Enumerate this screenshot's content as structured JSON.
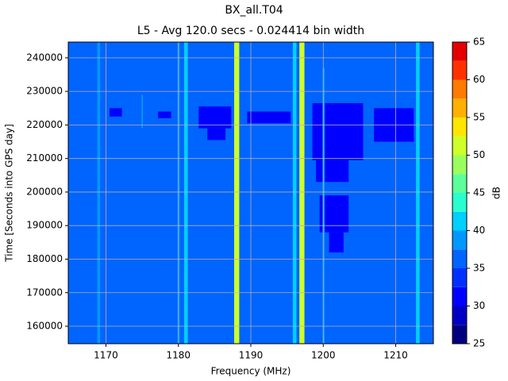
{
  "chart_data": {
    "type": "heatmap",
    "title": "BX_all.T04",
    "subtitle": "L5 - Avg 120.0 secs - 0.024414 bin width",
    "xlabel": "Frequency (MHz)",
    "ylabel": "Time [Seconds into GPS day]",
    "xlim": [
      1164.8,
      1215.2
    ],
    "ylim": [
      154800,
      244700
    ],
    "xticks": [
      1170,
      1180,
      1190,
      1200,
      1210
    ],
    "yticks": [
      160000,
      170000,
      180000,
      190000,
      200000,
      210000,
      220000,
      230000,
      240000
    ],
    "grid": true,
    "colorbar": {
      "label": "dB",
      "levels": [
        25,
        27.5,
        30,
        32.5,
        35,
        37.5,
        40,
        42.5,
        45,
        47.5,
        50,
        52.5,
        55,
        57.5,
        60,
        62.5,
        65
      ],
      "colors": [
        "#00007f",
        "#0000c4",
        "#0000ff",
        "#0030ff",
        "#0064ff",
        "#0098ff",
        "#00d0ff",
        "#29ffce",
        "#5cff9a",
        "#9aff5c",
        "#ceff29",
        "#ffe600",
        "#ffb000",
        "#ff7a00",
        "#ff3000",
        "#e40000"
      ],
      "ticks": [
        25,
        30,
        35,
        40,
        45,
        50,
        55,
        60,
        65
      ]
    },
    "cells": [
      {
        "x": [
          1164.8,
          1215.2
        ],
        "y": [
          154800,
          244700
        ],
        "value": 36
      },
      {
        "x": [
          1170.5,
          1172.2
        ],
        "y": [
          222500,
          225000
        ],
        "value": 31
      },
      {
        "x": [
          1177.2,
          1179.0
        ],
        "y": [
          222000,
          224000
        ],
        "value": 31
      },
      {
        "x": [
          1182.8,
          1187.3
        ],
        "y": [
          219000,
          225500
        ],
        "value": 31
      },
      {
        "x": [
          1184.0,
          1186.5
        ],
        "y": [
          215500,
          219000
        ],
        "value": 31
      },
      {
        "x": [
          1189.5,
          1195.5
        ],
        "y": [
          220500,
          224000
        ],
        "value": 31
      },
      {
        "x": [
          1198.5,
          1205.5
        ],
        "y": [
          209500,
          226500
        ],
        "value": 31
      },
      {
        "x": [
          1199.0,
          1203.5
        ],
        "y": [
          203000,
          209500
        ],
        "value": 31
      },
      {
        "x": [
          1199.5,
          1203.5
        ],
        "y": [
          188000,
          199000
        ],
        "value": 31
      },
      {
        "x": [
          1200.8,
          1202.8
        ],
        "y": [
          182000,
          188000
        ],
        "value": 31
      },
      {
        "x": [
          1207.0,
          1212.5
        ],
        "y": [
          215000,
          225000
        ],
        "value": 31
      },
      {
        "x": [
          1168.8,
          1169.2
        ],
        "y": [
          154800,
          244700
        ],
        "value": 39
      },
      {
        "x": [
          1174.9,
          1175.1
        ],
        "y": [
          219000,
          229000
        ],
        "value": 39
      },
      {
        "x": [
          1179.9,
          1180.2
        ],
        "y": [
          154800,
          244700
        ],
        "value": 38
      },
      {
        "x": [
          1180.8,
          1181.3
        ],
        "y": [
          154800,
          244700
        ],
        "value": 40
      },
      {
        "x": [
          1187.7,
          1188.4
        ],
        "y": [
          154800,
          244700
        ],
        "value": 51
      },
      {
        "x": [
          1195.8,
          1196.3
        ],
        "y": [
          154800,
          244700
        ],
        "value": 41
      },
      {
        "x": [
          1196.7,
          1197.4
        ],
        "y": [
          154800,
          244700
        ],
        "value": 51
      },
      {
        "x": [
          1199.9,
          1200.2
        ],
        "y": [
          154800,
          237000
        ],
        "value": 38
      },
      {
        "x": [
          1212.8,
          1213.3
        ],
        "y": [
          154800,
          244700
        ],
        "value": 41
      }
    ]
  }
}
